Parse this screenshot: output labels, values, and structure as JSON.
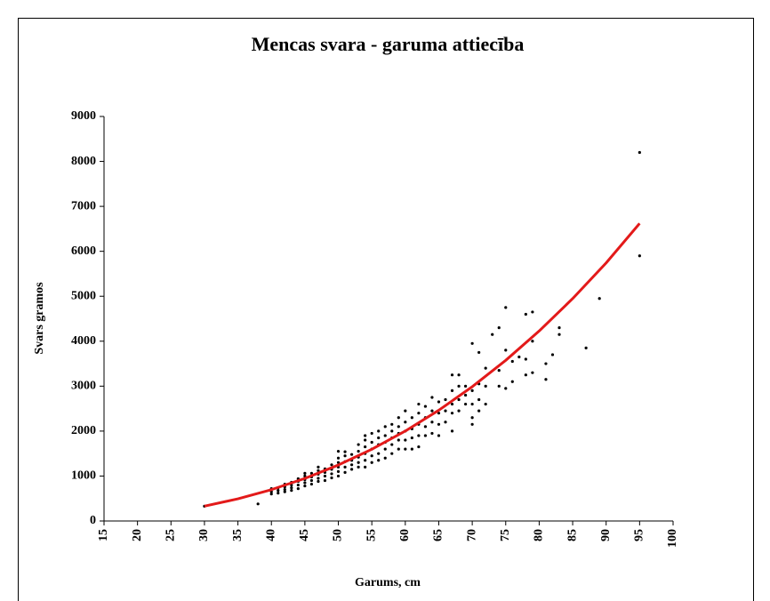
{
  "chart_data": {
    "type": "scatter",
    "title": "Mencas svara - garuma attiecība",
    "xlabel": "Garums, cm",
    "ylabel": "Svars gramos",
    "xlim": [
      15,
      100
    ],
    "ylim": [
      0,
      9000
    ],
    "xticks": [
      15,
      20,
      25,
      30,
      35,
      40,
      45,
      50,
      55,
      60,
      65,
      70,
      75,
      80,
      85,
      90,
      95,
      100
    ],
    "yticks": [
      0,
      1000,
      2000,
      3000,
      4000,
      5000,
      6000,
      7000,
      8000,
      9000
    ],
    "series": [
      {
        "style": "markers",
        "color": "#000000",
        "x": [
          30,
          38,
          40,
          40,
          40,
          40,
          41,
          41,
          41,
          42,
          42,
          42,
          42,
          43,
          43,
          43,
          43,
          44,
          44,
          44,
          44,
          45,
          45,
          45,
          45,
          45,
          46,
          46,
          46,
          46,
          47,
          47,
          47,
          47,
          47,
          48,
          48,
          48,
          48,
          49,
          49,
          49,
          49,
          50,
          50,
          50,
          50,
          50,
          50,
          51,
          51,
          51,
          51,
          51,
          52,
          52,
          52,
          52,
          53,
          53,
          53,
          53,
          53,
          54,
          54,
          54,
          54,
          54,
          54,
          55,
          55,
          55,
          55,
          55,
          56,
          56,
          56,
          56,
          56,
          57,
          57,
          57,
          57,
          57,
          58,
          58,
          58,
          58,
          58,
          59,
          59,
          59,
          59,
          59,
          60,
          60,
          60,
          60,
          60,
          61,
          61,
          61,
          61,
          62,
          62,
          62,
          62,
          62,
          63,
          63,
          63,
          63,
          64,
          64,
          64,
          64,
          65,
          65,
          65,
          65,
          66,
          66,
          66,
          67,
          67,
          67,
          67,
          67,
          68,
          68,
          68,
          68,
          69,
          69,
          69,
          70,
          70,
          70,
          70,
          70,
          71,
          71,
          71,
          71,
          72,
          72,
          72,
          73,
          74,
          74,
          74,
          75,
          75,
          75,
          76,
          76,
          77,
          78,
          78,
          78,
          79,
          79,
          79,
          81,
          81,
          82,
          83,
          83,
          87,
          89,
          95,
          95
        ],
        "values": [
          330,
          380,
          600,
          650,
          700,
          720,
          620,
          680,
          740,
          650,
          700,
          760,
          820,
          680,
          740,
          800,
          860,
          720,
          800,
          880,
          940,
          780,
          850,
          920,
          1000,
          1060,
          820,
          900,
          980,
          1060,
          880,
          950,
          1040,
          1120,
          1200,
          900,
          1000,
          1080,
          1160,
          960,
          1050,
          1150,
          1250,
          1000,
          1100,
          1200,
          1300,
          1400,
          1550,
          1080,
          1200,
          1320,
          1450,
          1540,
          1150,
          1250,
          1350,
          1480,
          1200,
          1300,
          1420,
          1550,
          1700,
          1200,
          1350,
          1500,
          1650,
          1800,
          1900,
          1300,
          1450,
          1600,
          1750,
          1950,
          1350,
          1500,
          1700,
          1850,
          2000,
          1400,
          1600,
          1750,
          1900,
          2100,
          1500,
          1700,
          1850,
          2000,
          2150,
          1600,
          1800,
          1950,
          2100,
          2300,
          1600,
          1800,
          2000,
          2200,
          2450,
          1600,
          1850,
          2050,
          2300,
          1650,
          1900,
          2150,
          2400,
          2600,
          1900,
          2100,
          2300,
          2550,
          1950,
          2200,
          2450,
          2750,
          1900,
          2150,
          2400,
          2650,
          2200,
          2450,
          2700,
          2000,
          2400,
          2600,
          2900,
          3250,
          2450,
          2700,
          3000,
          3250,
          2600,
          2800,
          3000,
          2150,
          2300,
          2600,
          2900,
          3950,
          2450,
          2700,
          3050,
          3750,
          2600,
          3000,
          3400,
          4150,
          3000,
          3350,
          4300,
          2950,
          3800,
          4750,
          3100,
          3550,
          3650,
          3250,
          3600,
          4600,
          3300,
          4000,
          4650,
          3150,
          3500,
          3700,
          4150,
          4300,
          3850,
          4950,
          5900,
          8200
        ]
      },
      {
        "style": "line",
        "color": "#e31a1a",
        "x": [
          30,
          35,
          40,
          45,
          50,
          55,
          60,
          65,
          70,
          75,
          80,
          85,
          90,
          95
        ],
        "values": [
          330,
          493,
          697,
          947,
          1245,
          1596,
          2001,
          2464,
          2987,
          3574,
          4227,
          4948,
          5741,
          6620
        ]
      }
    ]
  }
}
